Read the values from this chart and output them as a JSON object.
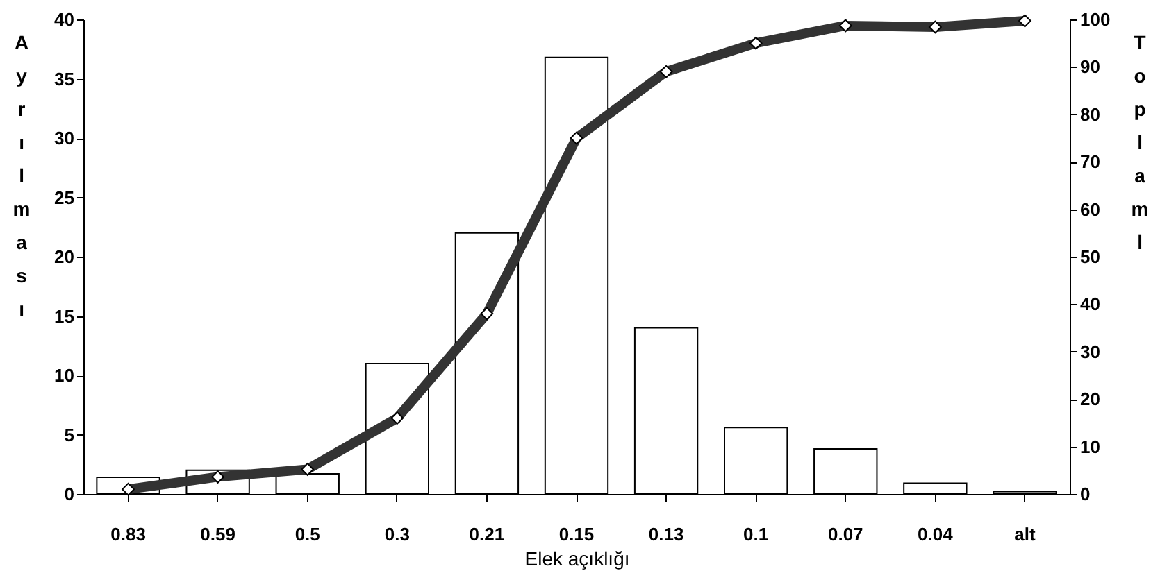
{
  "chart_data": {
    "type": "bar",
    "xlabel": "Elek açıklığı",
    "ylabel": "Ayrılması",
    "y2label": "Toplaml",
    "categories": [
      "0.83",
      "0.59",
      "0.5",
      "0.3",
      "0.21",
      "0.15",
      "0.13",
      "0.1",
      "0.07",
      "0.04",
      "alt"
    ],
    "series": [
      {
        "color": "#ffffff",
        "values": [
          1.4,
          2,
          1.7,
          11,
          22,
          36.8,
          14,
          5.6,
          3.8,
          0.9,
          0.2
        ]
      },
      {
        "type": "line",
        "axis": "y2",
        "color": "#333333",
        "marker": "diamond",
        "line_style": "solid",
        "values": [
          1,
          3.6,
          5.2,
          16,
          38,
          75,
          89,
          95,
          98.7,
          98.4,
          99.7
        ]
      }
    ],
    "ylim": [
      0,
      40
    ],
    "yticks": [
      0,
      5,
      10,
      15,
      20,
      25,
      30,
      35,
      40
    ],
    "y2lim": [
      0,
      100
    ],
    "y2ticks": [
      0,
      10,
      20,
      30,
      40,
      50,
      60,
      70,
      80,
      90,
      100
    ],
    "grid": false
  }
}
